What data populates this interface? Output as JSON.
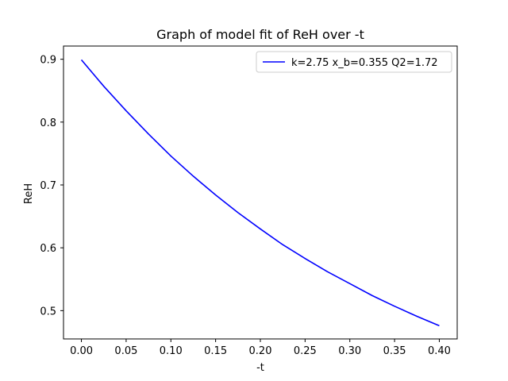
{
  "chart_data": {
    "type": "line",
    "title": "Graph of model fit of ReH over -t",
    "xlabel": "-t",
    "ylabel": "ReH",
    "xlim": [
      -0.02,
      0.42
    ],
    "ylim": [
      0.455,
      0.921
    ],
    "xticks": [
      0.0,
      0.05,
      0.1,
      0.15,
      0.2,
      0.25,
      0.3,
      0.35,
      0.4
    ],
    "xtick_labels": [
      "0.00",
      "0.05",
      "0.10",
      "0.15",
      "0.20",
      "0.25",
      "0.30",
      "0.35",
      "0.40"
    ],
    "yticks": [
      0.5,
      0.6,
      0.7,
      0.8,
      0.9
    ],
    "ytick_labels": [
      "0.5",
      "0.6",
      "0.7",
      "0.8",
      "0.9"
    ],
    "grid": false,
    "legend_position": "top-right",
    "series": [
      {
        "name": "k=2.75 x_b=0.355 Q2=1.72",
        "color": "#0000ff",
        "x": [
          0.0,
          0.025,
          0.05,
          0.075,
          0.1,
          0.125,
          0.15,
          0.175,
          0.2,
          0.225,
          0.25,
          0.275,
          0.3,
          0.325,
          0.35,
          0.375,
          0.4
        ],
        "y": [
          0.899,
          0.857,
          0.818,
          0.781,
          0.746,
          0.714,
          0.684,
          0.656,
          0.63,
          0.605,
          0.583,
          0.562,
          0.543,
          0.524,
          0.507,
          0.491,
          0.476
        ]
      }
    ]
  }
}
